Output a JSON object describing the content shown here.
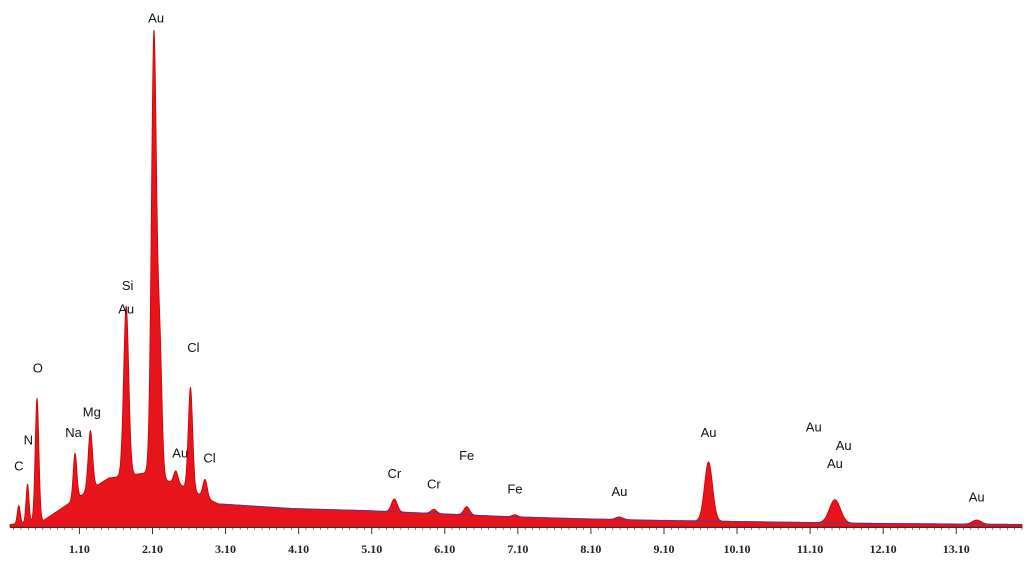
{
  "chart_data": {
    "type": "area",
    "title": "",
    "xlabel": "",
    "ylabel": "",
    "xlim": [
      0.15,
      14.0
    ],
    "ylim": [
      0,
      100
    ],
    "grid": false,
    "legend": "none",
    "x_ticks": [
      {
        "value": 1.1,
        "label": "1.10"
      },
      {
        "value": 2.1,
        "label": "2.10"
      },
      {
        "value": 3.1,
        "label": "3.10"
      },
      {
        "value": 4.1,
        "label": "4.10"
      },
      {
        "value": 5.1,
        "label": "5.10"
      },
      {
        "value": 6.1,
        "label": "6.10"
      },
      {
        "value": 7.1,
        "label": "7.10"
      },
      {
        "value": 8.1,
        "label": "8.10"
      },
      {
        "value": 9.1,
        "label": "9.10"
      },
      {
        "value": 10.1,
        "label": "10.10"
      },
      {
        "value": 11.1,
        "label": "11.10"
      },
      {
        "value": 12.1,
        "label": "12.10"
      },
      {
        "value": 13.1,
        "label": "13.10"
      }
    ],
    "colors": {
      "fill": "#e8141c",
      "edge": "#cc0000",
      "background_line": "#3b3fb0",
      "axis": "#333333"
    },
    "background": [
      {
        "x": 0.15,
        "y": 0.5
      },
      {
        "x": 0.6,
        "y": 1.2
      },
      {
        "x": 1.0,
        "y": 5.0
      },
      {
        "x": 1.5,
        "y": 9.5
      },
      {
        "x": 2.0,
        "y": 10.5
      },
      {
        "x": 2.5,
        "y": 8.0
      },
      {
        "x": 3.0,
        "y": 4.5
      },
      {
        "x": 4.0,
        "y": 3.6
      },
      {
        "x": 5.0,
        "y": 3.2
      },
      {
        "x": 6.0,
        "y": 2.6
      },
      {
        "x": 7.0,
        "y": 2.0
      },
      {
        "x": 8.0,
        "y": 1.6
      },
      {
        "x": 9.0,
        "y": 1.3
      },
      {
        "x": 10.0,
        "y": 1.1
      },
      {
        "x": 11.0,
        "y": 0.9
      },
      {
        "x": 12.0,
        "y": 0.7
      },
      {
        "x": 13.0,
        "y": 0.6
      },
      {
        "x": 14.0,
        "y": 0.5
      }
    ],
    "peaks": [
      {
        "x": 0.27,
        "height": 3.5,
        "width": 0.02
      },
      {
        "x": 0.39,
        "height": 7.5,
        "width": 0.02
      },
      {
        "x": 0.52,
        "height": 24.0,
        "width": 0.025
      },
      {
        "x": 1.04,
        "height": 9.0,
        "width": 0.025
      },
      {
        "x": 1.25,
        "height": 11.5,
        "width": 0.03
      },
      {
        "x": 1.74,
        "height": 33.0,
        "width": 0.035
      },
      {
        "x": 2.12,
        "height": 86.0,
        "width": 0.035
      },
      {
        "x": 2.2,
        "height": 25.0,
        "width": 0.03
      },
      {
        "x": 2.42,
        "height": 2.5,
        "width": 0.03
      },
      {
        "x": 2.62,
        "height": 20.0,
        "width": 0.03
      },
      {
        "x": 2.82,
        "height": 3.5,
        "width": 0.03
      },
      {
        "x": 5.41,
        "height": 2.5,
        "width": 0.04
      },
      {
        "x": 5.95,
        "height": 0.8,
        "width": 0.04
      },
      {
        "x": 6.4,
        "height": 1.6,
        "width": 0.04
      },
      {
        "x": 7.06,
        "height": 0.4,
        "width": 0.04
      },
      {
        "x": 8.49,
        "height": 0.5,
        "width": 0.05
      },
      {
        "x": 9.71,
        "height": 11.5,
        "width": 0.055
      },
      {
        "x": 11.44,
        "height": 4.5,
        "width": 0.075
      },
      {
        "x": 13.38,
        "height": 0.8,
        "width": 0.06
      }
    ],
    "peak_labels": [
      {
        "text": "C",
        "x": 0.27,
        "y": 11
      },
      {
        "text": "N",
        "x": 0.4,
        "y": 16
      },
      {
        "text": "O",
        "x": 0.53,
        "y": 30
      },
      {
        "text": "Na",
        "x": 1.02,
        "y": 17.5
      },
      {
        "text": "Mg",
        "x": 1.27,
        "y": 21.5
      },
      {
        "text": "Si",
        "x": 1.76,
        "y": 46
      },
      {
        "text": "Au",
        "x": 1.74,
        "y": 41.5
      },
      {
        "text": "Au",
        "x": 2.15,
        "y": 98
      },
      {
        "text": "Au",
        "x": 2.48,
        "y": 13.5
      },
      {
        "text": "Cl",
        "x": 2.66,
        "y": 34
      },
      {
        "text": "Cl",
        "x": 2.88,
        "y": 12.5
      },
      {
        "text": "Cr",
        "x": 5.41,
        "y": 9.5
      },
      {
        "text": "Cr",
        "x": 5.95,
        "y": 7.5
      },
      {
        "text": "Fe",
        "x": 6.4,
        "y": 13.0
      },
      {
        "text": "Fe",
        "x": 7.06,
        "y": 6.5
      },
      {
        "text": "Au",
        "x": 8.49,
        "y": 6.0
      },
      {
        "text": "Au",
        "x": 9.71,
        "y": 17.5
      },
      {
        "text": "Au",
        "x": 11.15,
        "y": 18.5
      },
      {
        "text": "Au",
        "x": 11.56,
        "y": 15.0
      },
      {
        "text": "Au",
        "x": 11.44,
        "y": 11.5
      },
      {
        "text": "Au",
        "x": 13.38,
        "y": 5.0
      }
    ]
  }
}
